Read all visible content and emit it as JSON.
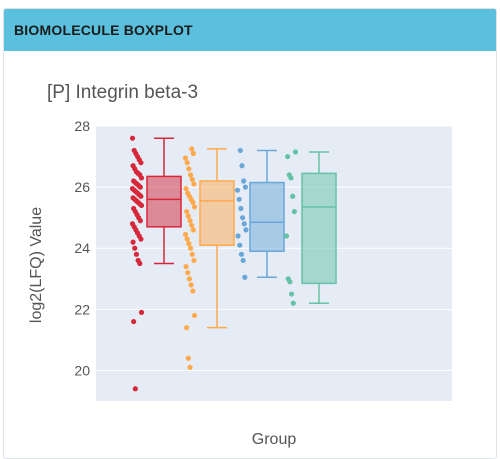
{
  "panel": {
    "title": "BIOMOLECULE BOXPLOT"
  },
  "chart_data": {
    "type": "box",
    "title": "[P] Integrin beta-3",
    "xlabel": "Group",
    "ylabel": "log2(LFQ) Value",
    "ylim": [
      19,
      28
    ],
    "yticks": [
      20,
      22,
      24,
      26,
      28
    ],
    "grid": true,
    "plot_background": "#e5ecf6",
    "series": [
      {
        "color": "#d62839",
        "box": {
          "min": 23.5,
          "q1": 24.7,
          "median": 25.6,
          "q3": 26.35,
          "max": 27.6
        },
        "points": [
          27.6,
          27.2,
          27.1,
          27.0,
          26.9,
          26.8,
          26.7,
          26.6,
          26.5,
          26.45,
          26.4,
          26.3,
          26.2,
          26.15,
          26.1,
          26.05,
          26.0,
          25.95,
          25.9,
          25.85,
          25.8,
          25.75,
          25.7,
          25.65,
          25.6,
          25.55,
          25.5,
          25.45,
          25.4,
          25.3,
          25.2,
          25.1,
          25.0,
          24.9,
          24.8,
          24.7,
          24.6,
          24.5,
          24.4,
          24.3,
          24.2,
          24.0,
          23.8,
          23.6,
          23.5,
          21.9,
          21.6,
          19.4
        ]
      },
      {
        "color": "#ffa94d",
        "box": {
          "min": 21.4,
          "q1": 24.1,
          "median": 25.55,
          "q3": 26.2,
          "max": 27.25
        },
        "points": [
          27.25,
          27.1,
          26.95,
          26.8,
          26.6,
          26.4,
          26.25,
          26.1,
          25.95,
          25.8,
          25.7,
          25.6,
          25.5,
          25.35,
          25.2,
          25.05,
          24.9,
          24.75,
          24.6,
          24.45,
          24.3,
          24.15,
          24.0,
          23.8,
          23.6,
          23.4,
          23.2,
          23.0,
          22.8,
          22.6,
          21.8,
          21.4,
          20.4,
          20.1
        ]
      },
      {
        "color": "#6aa7d8",
        "box": {
          "min": 23.05,
          "q1": 23.9,
          "median": 24.85,
          "q3": 26.15,
          "max": 27.2
        },
        "points": [
          27.2,
          26.7,
          26.2,
          26.0,
          25.9,
          25.6,
          25.3,
          25.0,
          24.8,
          24.6,
          24.4,
          24.1,
          23.8,
          23.6,
          23.05
        ]
      },
      {
        "color": "#66c2a5",
        "box": {
          "min": 22.2,
          "q1": 22.85,
          "median": 25.35,
          "q3": 26.45,
          "max": 27.15
        },
        "points": [
          27.15,
          27.0,
          26.4,
          26.3,
          25.7,
          25.2,
          24.4,
          23.0,
          22.9,
          22.5,
          22.2
        ]
      }
    ]
  }
}
